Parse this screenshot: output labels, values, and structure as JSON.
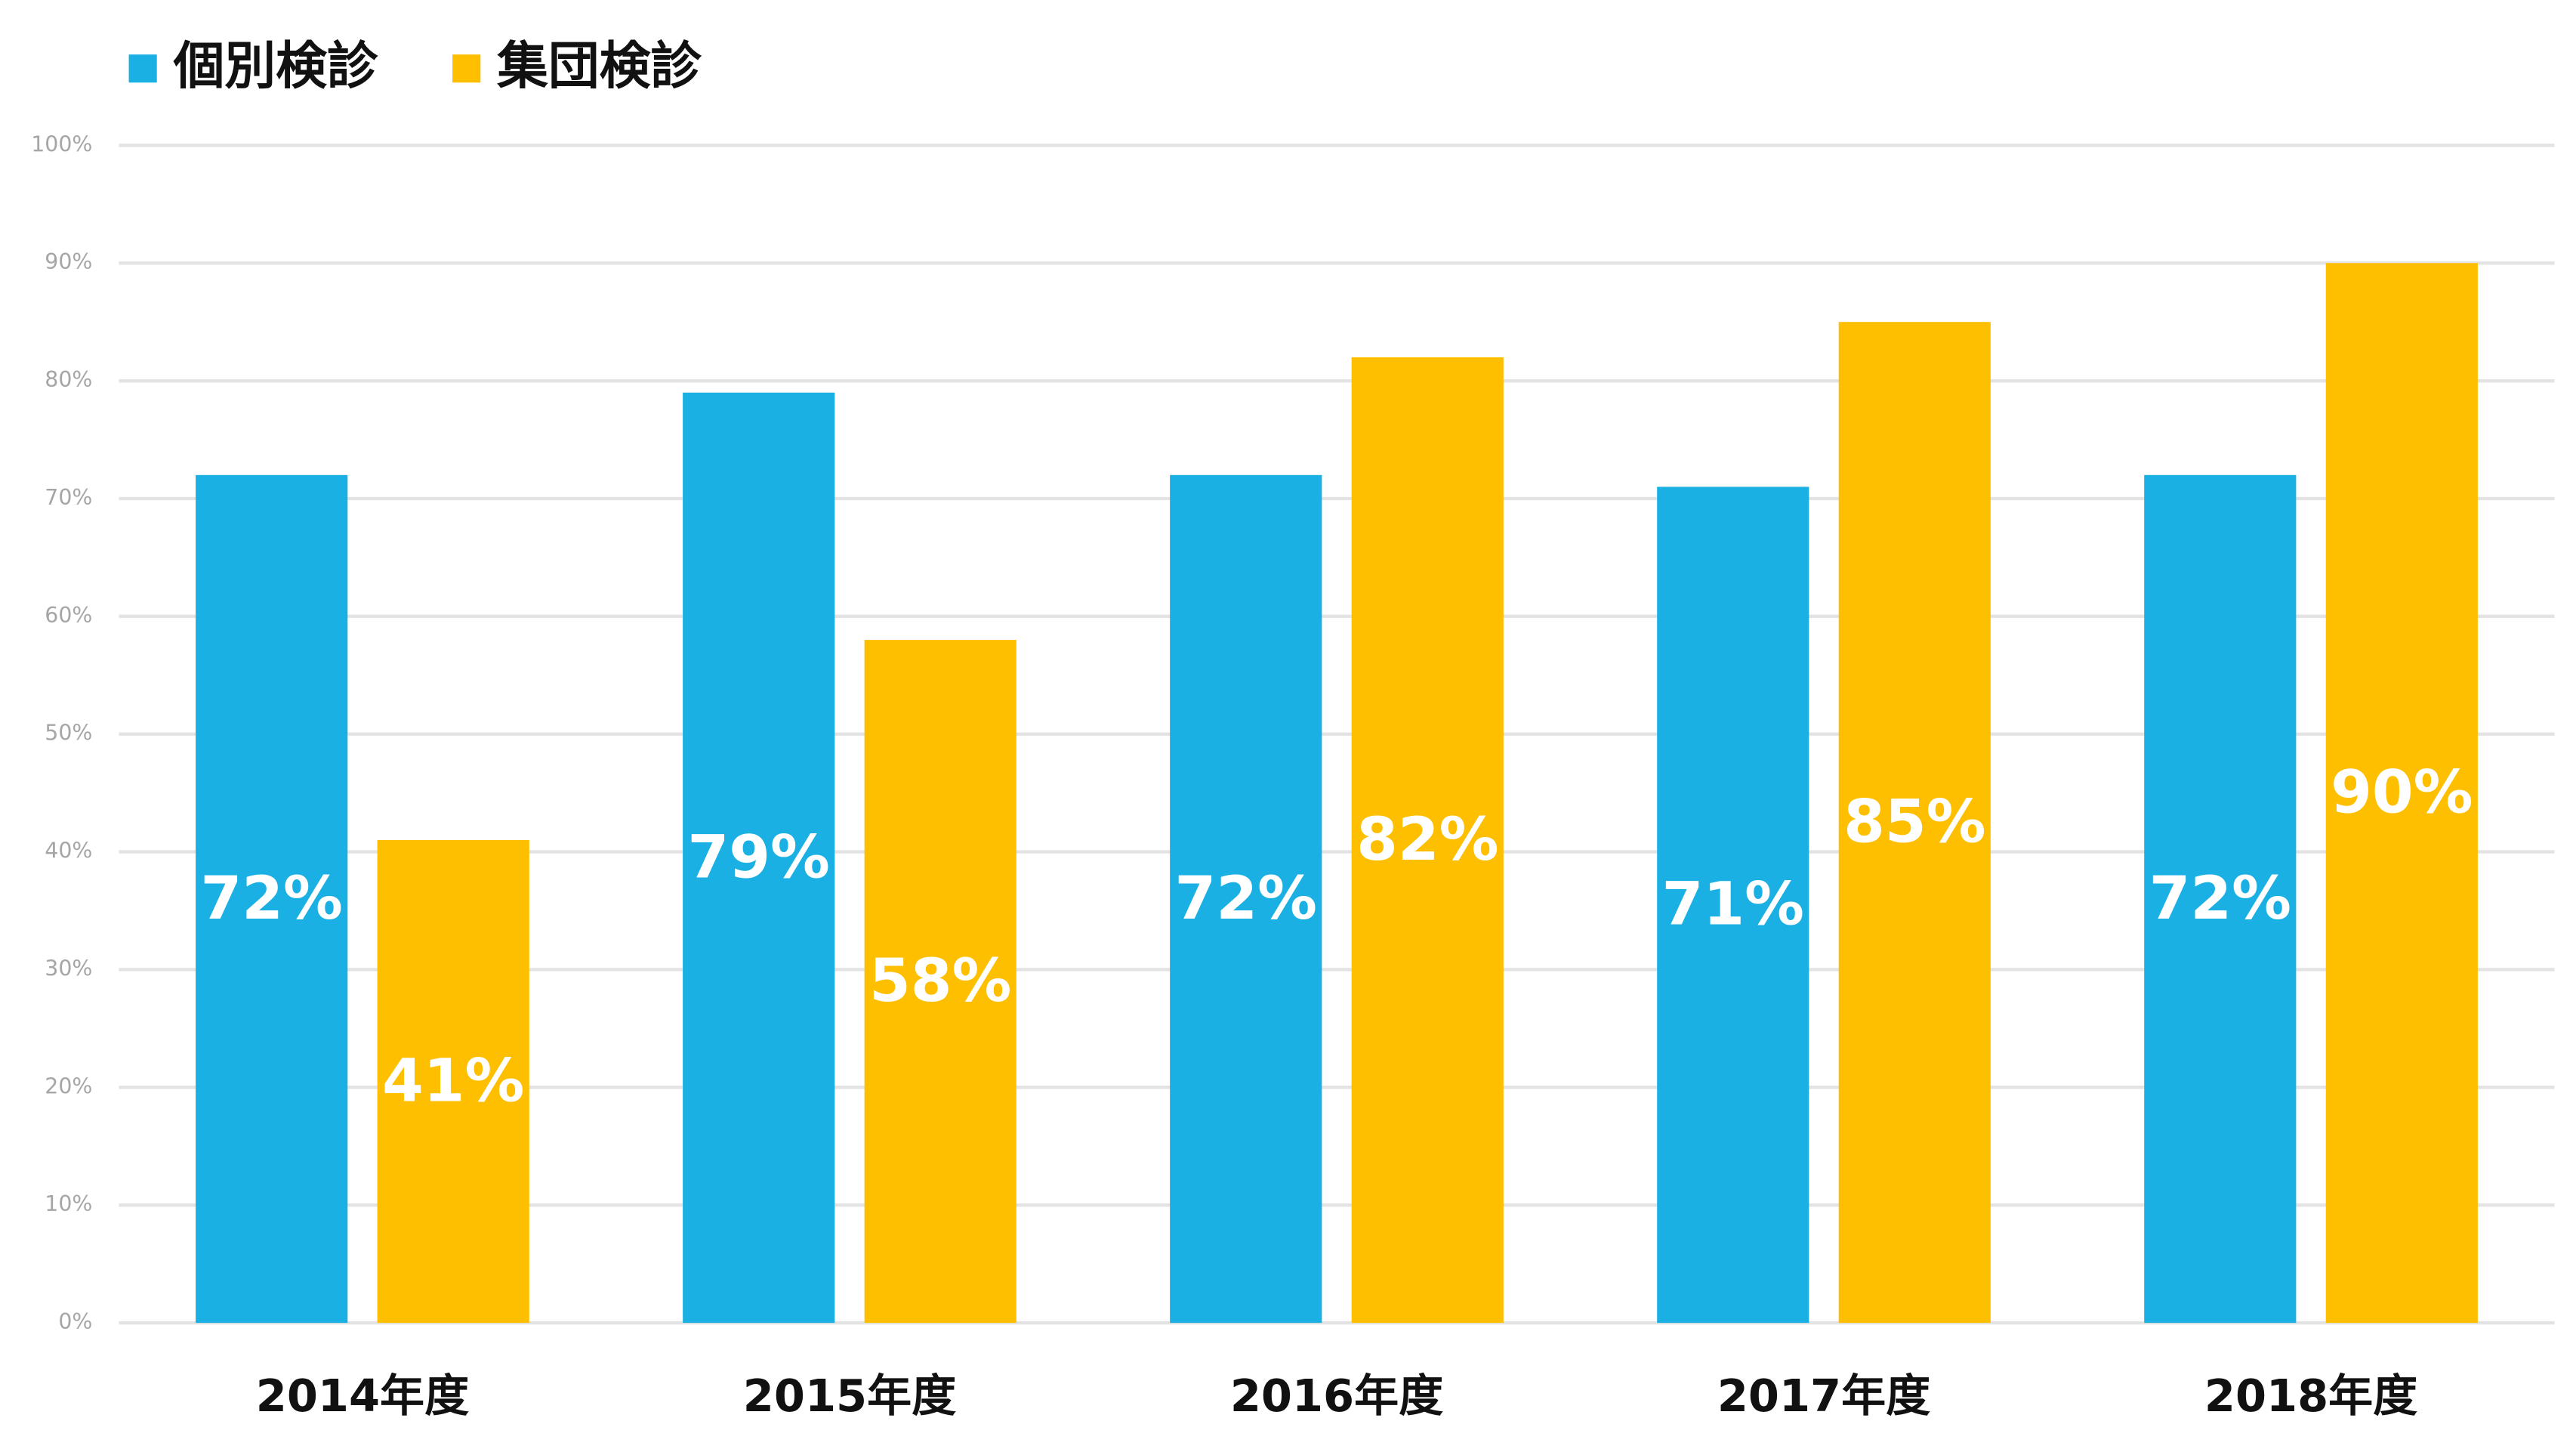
{
  "chart_data": {
    "type": "bar",
    "categories": [
      "2014年度",
      "2015年度",
      "2016年度",
      "2017年度",
      "2018年度"
    ],
    "series": [
      {
        "name": "個別検診",
        "color": "#1ab0e3",
        "values": [
          72,
          79,
          72,
          71,
          72
        ],
        "value_labels": [
          "72%",
          "79%",
          "72%",
          "71%",
          "72%"
        ]
      },
      {
        "name": "集団検診",
        "color": "#fdbf00",
        "values": [
          41,
          58,
          82,
          85,
          90
        ],
        "value_labels": [
          "41%",
          "58%",
          "82%",
          "85%",
          "90%"
        ]
      }
    ],
    "ylim": [
      0,
      100
    ],
    "yticks": [
      {
        "value": 0,
        "label": "0%"
      },
      {
        "value": 10,
        "label": "10%"
      },
      {
        "value": 20,
        "label": "20%"
      },
      {
        "value": 30,
        "label": "30%"
      },
      {
        "value": 40,
        "label": "40%"
      },
      {
        "value": 50,
        "label": "50%"
      },
      {
        "value": 60,
        "label": "60%"
      },
      {
        "value": 70,
        "label": "70%"
      },
      {
        "value": 80,
        "label": "80%"
      },
      {
        "value": 90,
        "label": "90%"
      },
      {
        "value": 100,
        "label": "100%"
      }
    ],
    "grid": true,
    "legend": "top-left"
  }
}
